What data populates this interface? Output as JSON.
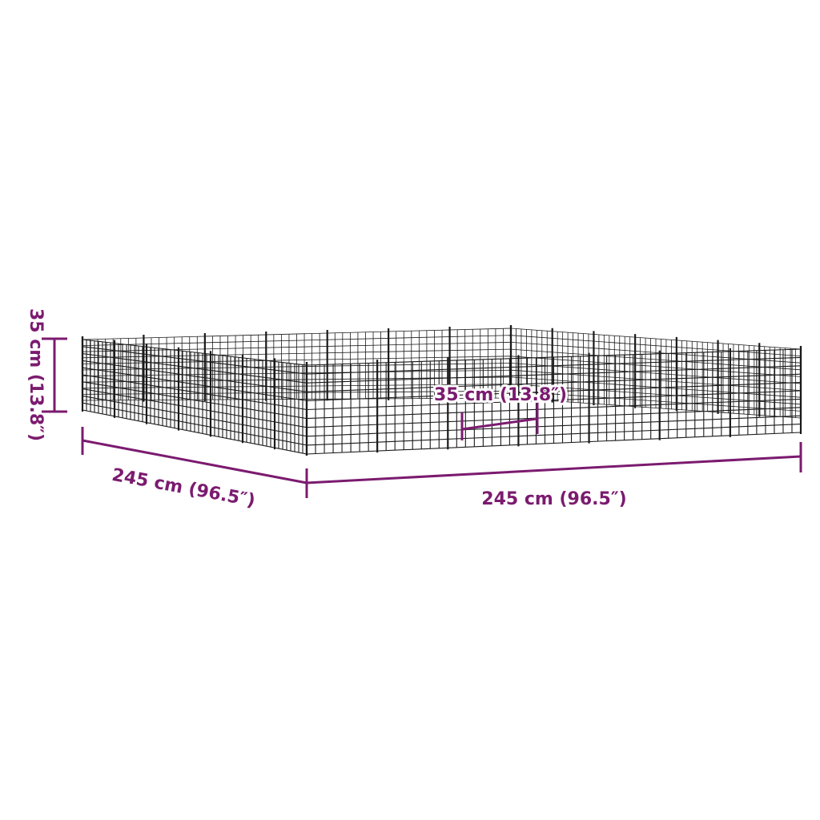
{
  "colors": {
    "dimension": "#7b1b6f",
    "mesh": "#1a1a1a",
    "background": "#ffffff"
  },
  "labels": {
    "height": "35 cm (13.8″)",
    "depth": "245 cm (96.5″)",
    "width": "245 cm (96.5″)",
    "panel_width": "35 cm (13.8″)"
  }
}
